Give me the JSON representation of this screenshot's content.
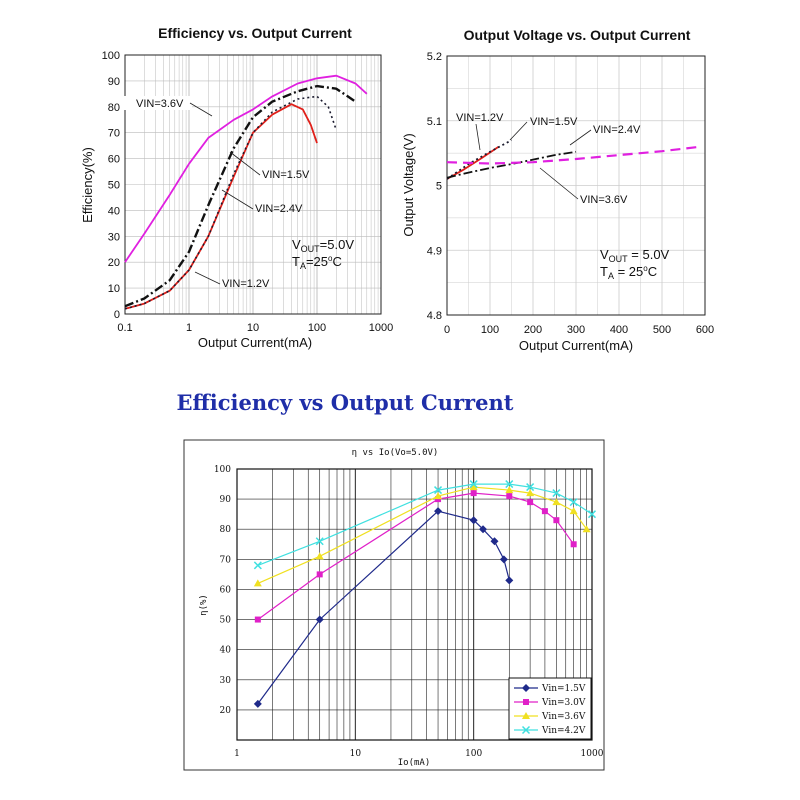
{
  "page": {
    "section_title": "Efficiency vs Output Current"
  },
  "chart_data": [
    {
      "type": "line",
      "title": "Efficiency vs. Output Current",
      "xlabel": "Output Current(mA)",
      "ylabel": "Efficiency(%)",
      "xscale": "log",
      "xlim": [
        0.1,
        1000
      ],
      "ylim": [
        0,
        100
      ],
      "x_ticks": [
        "0.1",
        "1",
        "10",
        "100",
        "1000"
      ],
      "y_ticks": [
        "0",
        "10",
        "20",
        "30",
        "40",
        "50",
        "60",
        "70",
        "80",
        "90",
        "100"
      ],
      "conditions": {
        "vout_prefix": "V",
        "vout_sub": "OUT",
        "vout_value": "=5.0V",
        "ta_prefix": "T",
        "ta_sub": "A",
        "ta_value": "=25",
        "ta_sup": "o",
        "ta_unit": "C"
      },
      "series": [
        {
          "name": "VIN=1.2V",
          "color": "#e0201a",
          "style": "solid",
          "x": [
            0.1,
            0.2,
            0.5,
            1,
            2,
            5,
            10,
            20,
            40,
            60,
            80,
            100
          ],
          "y": [
            2,
            4,
            9,
            17,
            30,
            53,
            70,
            77,
            81,
            79,
            73,
            66
          ]
        },
        {
          "name": "VIN=1.5V",
          "color": "#1a1a2e",
          "style": "dotted",
          "x": [
            0.1,
            0.2,
            0.5,
            1,
            2,
            5,
            10,
            20,
            50,
            100,
            150,
            200
          ],
          "y": [
            2,
            4,
            9,
            17,
            30,
            54,
            70,
            78,
            83,
            84,
            80,
            71
          ]
        },
        {
          "name": "VIN=2.4V",
          "color": "#111111",
          "style": "dashdot",
          "x": [
            0.1,
            0.2,
            0.5,
            1,
            2,
            5,
            10,
            20,
            50,
            100,
            200,
            400
          ],
          "y": [
            3,
            6,
            13,
            24,
            42,
            64,
            76,
            82,
            86,
            88,
            87,
            82
          ]
        },
        {
          "name": "VIN=3.6V",
          "color": "#e020e0",
          "style": "solid",
          "x": [
            0.1,
            0.2,
            0.5,
            1,
            2,
            5,
            10,
            20,
            50,
            100,
            200,
            400,
            600
          ],
          "y": [
            20,
            31,
            46,
            58,
            68,
            75,
            79,
            84,
            89,
            91,
            92,
            89,
            85
          ]
        }
      ],
      "annotations": [
        "VIN=3.6V",
        "VIN=1.5V",
        "VIN=2.4V",
        "VIN=1.2V"
      ]
    },
    {
      "type": "line",
      "title": "Output Voltage vs. Output Current",
      "xlabel": "Output Current(mA)",
      "ylabel": "Output Voltage(V)",
      "xlim": [
        0,
        600
      ],
      "ylim": [
        4.8,
        5.2
      ],
      "x_ticks": [
        "0",
        "100",
        "200",
        "300",
        "400",
        "500",
        "600"
      ],
      "y_ticks": [
        "4.8",
        "4.9",
        "5",
        "5.1",
        "5.2"
      ],
      "conditions": {
        "vout_prefix": "V",
        "vout_sub": "OUT",
        "vout_value": " = 5.0V",
        "ta_prefix": "T",
        "ta_sub": "A",
        "ta_value": " = 25",
        "ta_sup": "o",
        "ta_unit": "C"
      },
      "series": [
        {
          "name": "VIN=1.2V",
          "color": "#e0201a",
          "style": "solid",
          "x": [
            0,
            40,
            80,
            120
          ],
          "y": [
            5.01,
            5.025,
            5.042,
            5.06
          ]
        },
        {
          "name": "VIN=1.5V",
          "color": "#1a1a2e",
          "style": "dotted",
          "x": [
            0,
            50,
            100,
            150
          ],
          "y": [
            5.01,
            5.033,
            5.052,
            5.07
          ]
        },
        {
          "name": "VIN=2.4V",
          "color": "#111111",
          "style": "dashdot",
          "x": [
            0,
            50,
            100,
            150,
            200,
            250,
            300
          ],
          "y": [
            5.012,
            5.02,
            5.027,
            5.033,
            5.04,
            5.047,
            5.052
          ]
        },
        {
          "name": "VIN=3.6V",
          "color": "#e020e0",
          "style": "dashed",
          "x": [
            0,
            100,
            200,
            300,
            400,
            500,
            590
          ],
          "y": [
            5.036,
            5.034,
            5.036,
            5.041,
            5.047,
            5.053,
            5.06
          ]
        }
      ],
      "annotations": [
        "VIN=1.2V",
        "VIN=1.5V",
        "VIN=2.4V",
        "VIN=3.6V"
      ]
    },
    {
      "type": "line",
      "title": "η vs Io(Vo=5.0V)",
      "xlabel": "Io(mA)",
      "ylabel": "η(%)",
      "xscale": "log",
      "xlim": [
        1,
        1000
      ],
      "ylim": [
        10,
        100
      ],
      "x_ticks": [
        "1",
        "10",
        "100",
        "1000"
      ],
      "y_ticks": [
        "20",
        "30",
        "40",
        "50",
        "60",
        "70",
        "80",
        "90",
        "100"
      ],
      "series": [
        {
          "name": "Vin=1.5V",
          "color": "#1f2a8a",
          "marker": "diamond",
          "x": [
            1.5,
            5,
            50,
            100,
            120,
            150,
            180,
            200
          ],
          "y": [
            22,
            50,
            86,
            83,
            80,
            76,
            70,
            63
          ]
        },
        {
          "name": "Vin=3.0V",
          "color": "#e020c8",
          "marker": "square",
          "x": [
            1.5,
            5,
            50,
            100,
            200,
            300,
            400,
            500,
            700
          ],
          "y": [
            50,
            65,
            90,
            92,
            91,
            89,
            86,
            83,
            75
          ]
        },
        {
          "name": "Vin=3.6V",
          "color": "#f0e020",
          "marker": "triangle",
          "x": [
            1.5,
            5,
            50,
            100,
            200,
            300,
            500,
            700,
            900
          ],
          "y": [
            62,
            71,
            91,
            94,
            93,
            92,
            89,
            86,
            80
          ]
        },
        {
          "name": "Vin=4.2V",
          "color": "#40e0e0",
          "marker": "x",
          "x": [
            1.5,
            5,
            50,
            100,
            200,
            300,
            500,
            700,
            1000
          ],
          "y": [
            68,
            76,
            93,
            95,
            95,
            94,
            92,
            89,
            85
          ]
        }
      ],
      "legend": [
        "Vin=1.5V",
        "Vin=3.0V",
        "Vin=3.6V",
        "Vin=4.2V"
      ],
      "legend_position": "bottom-right"
    }
  ]
}
